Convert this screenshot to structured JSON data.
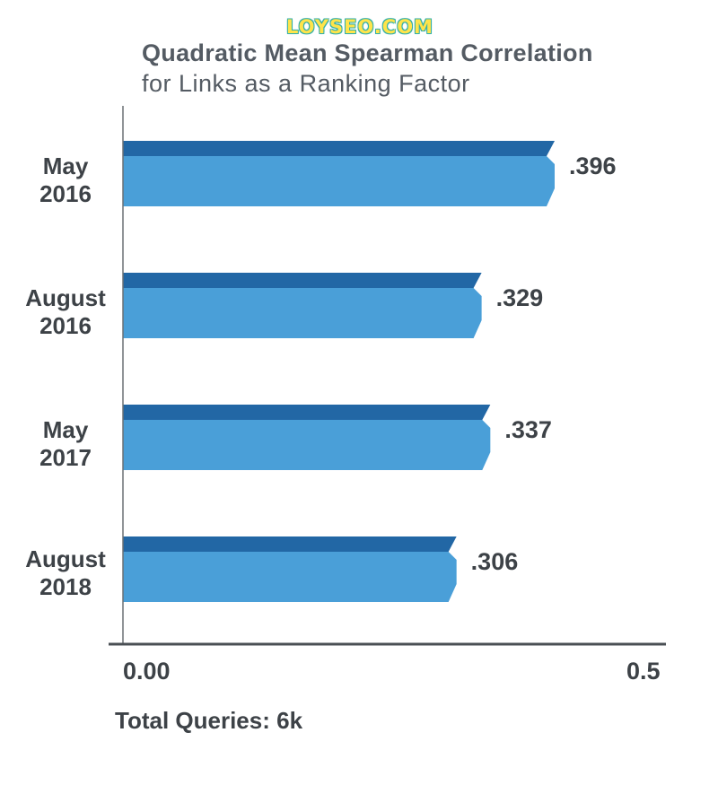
{
  "watermark": "LOYSEO.COM",
  "chart_data": {
    "type": "bar",
    "orientation": "horizontal",
    "title": "Quadratic Mean Spearman Correlation",
    "subtitle": "for Links as a Ranking Factor",
    "categories": [
      {
        "line1": "May",
        "line2": "2016"
      },
      {
        "line1": "August",
        "line2": "2016"
      },
      {
        "line1": "May",
        "line2": "2017"
      },
      {
        "line1": "August",
        "line2": "2018"
      }
    ],
    "values": [
      0.396,
      0.329,
      0.337,
      0.306
    ],
    "value_labels": [
      ".396",
      ".329",
      ".337",
      ".306"
    ],
    "xlim": [
      0,
      0.5
    ],
    "tick_labels": [
      "0.00",
      "0.5"
    ],
    "grid": false,
    "bar_color": "#4a9fd8",
    "bar_top_color": "#2267a5",
    "footer": "Total Queries: 6k"
  }
}
